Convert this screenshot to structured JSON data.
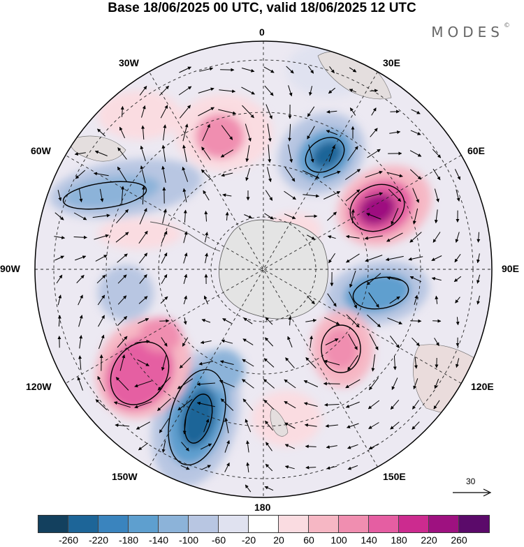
{
  "title": "Base 18/06/2025 00 UTC, valid 18/06/2025 12 UTC",
  "brand": "MODES",
  "brand_mark": "©",
  "longitude_labels": {
    "lon_0": "0",
    "lon_30e": "30E",
    "lon_60e": "60E",
    "lon_90e": "90E",
    "lon_120e": "120E",
    "lon_150e": "150E",
    "lon_180": "180",
    "lon_150w": "150W",
    "lon_120w": "120W",
    "lon_90w": "90W",
    "lon_60w": "60W",
    "lon_30w": "30W"
  },
  "reference_vector_label": "30",
  "colorbar": {
    "colors": [
      "#13405e",
      "#1d6598",
      "#3a84be",
      "#5e9fcf",
      "#8cb3d9",
      "#b8c6e2",
      "#e0e2f0",
      "#ffffff",
      "#fadce1",
      "#f6b7c4",
      "#f08eb0",
      "#e55ea2",
      "#cc2b8f",
      "#9e1180",
      "#5b0a6a"
    ],
    "labels": [
      "-260",
      "-220",
      "-180",
      "-140",
      "-100",
      "-60",
      "-20",
      "20",
      "60",
      "100",
      "140",
      "180",
      "220",
      "260"
    ]
  },
  "map": {
    "projection": "south-polar stereographic",
    "anomaly_centers": [
      {
        "lon": 20,
        "value": -200
      },
      {
        "lon": 55,
        "value": 230
      },
      {
        "lon": 100,
        "value": -150
      },
      {
        "lon": 150,
        "value": 110
      },
      {
        "lon": -165,
        "value": -190
      },
      {
        "lon": -125,
        "value": 180
      },
      {
        "lon": -15,
        "value": 120
      },
      {
        "lon": -60,
        "value": -90
      }
    ]
  }
}
